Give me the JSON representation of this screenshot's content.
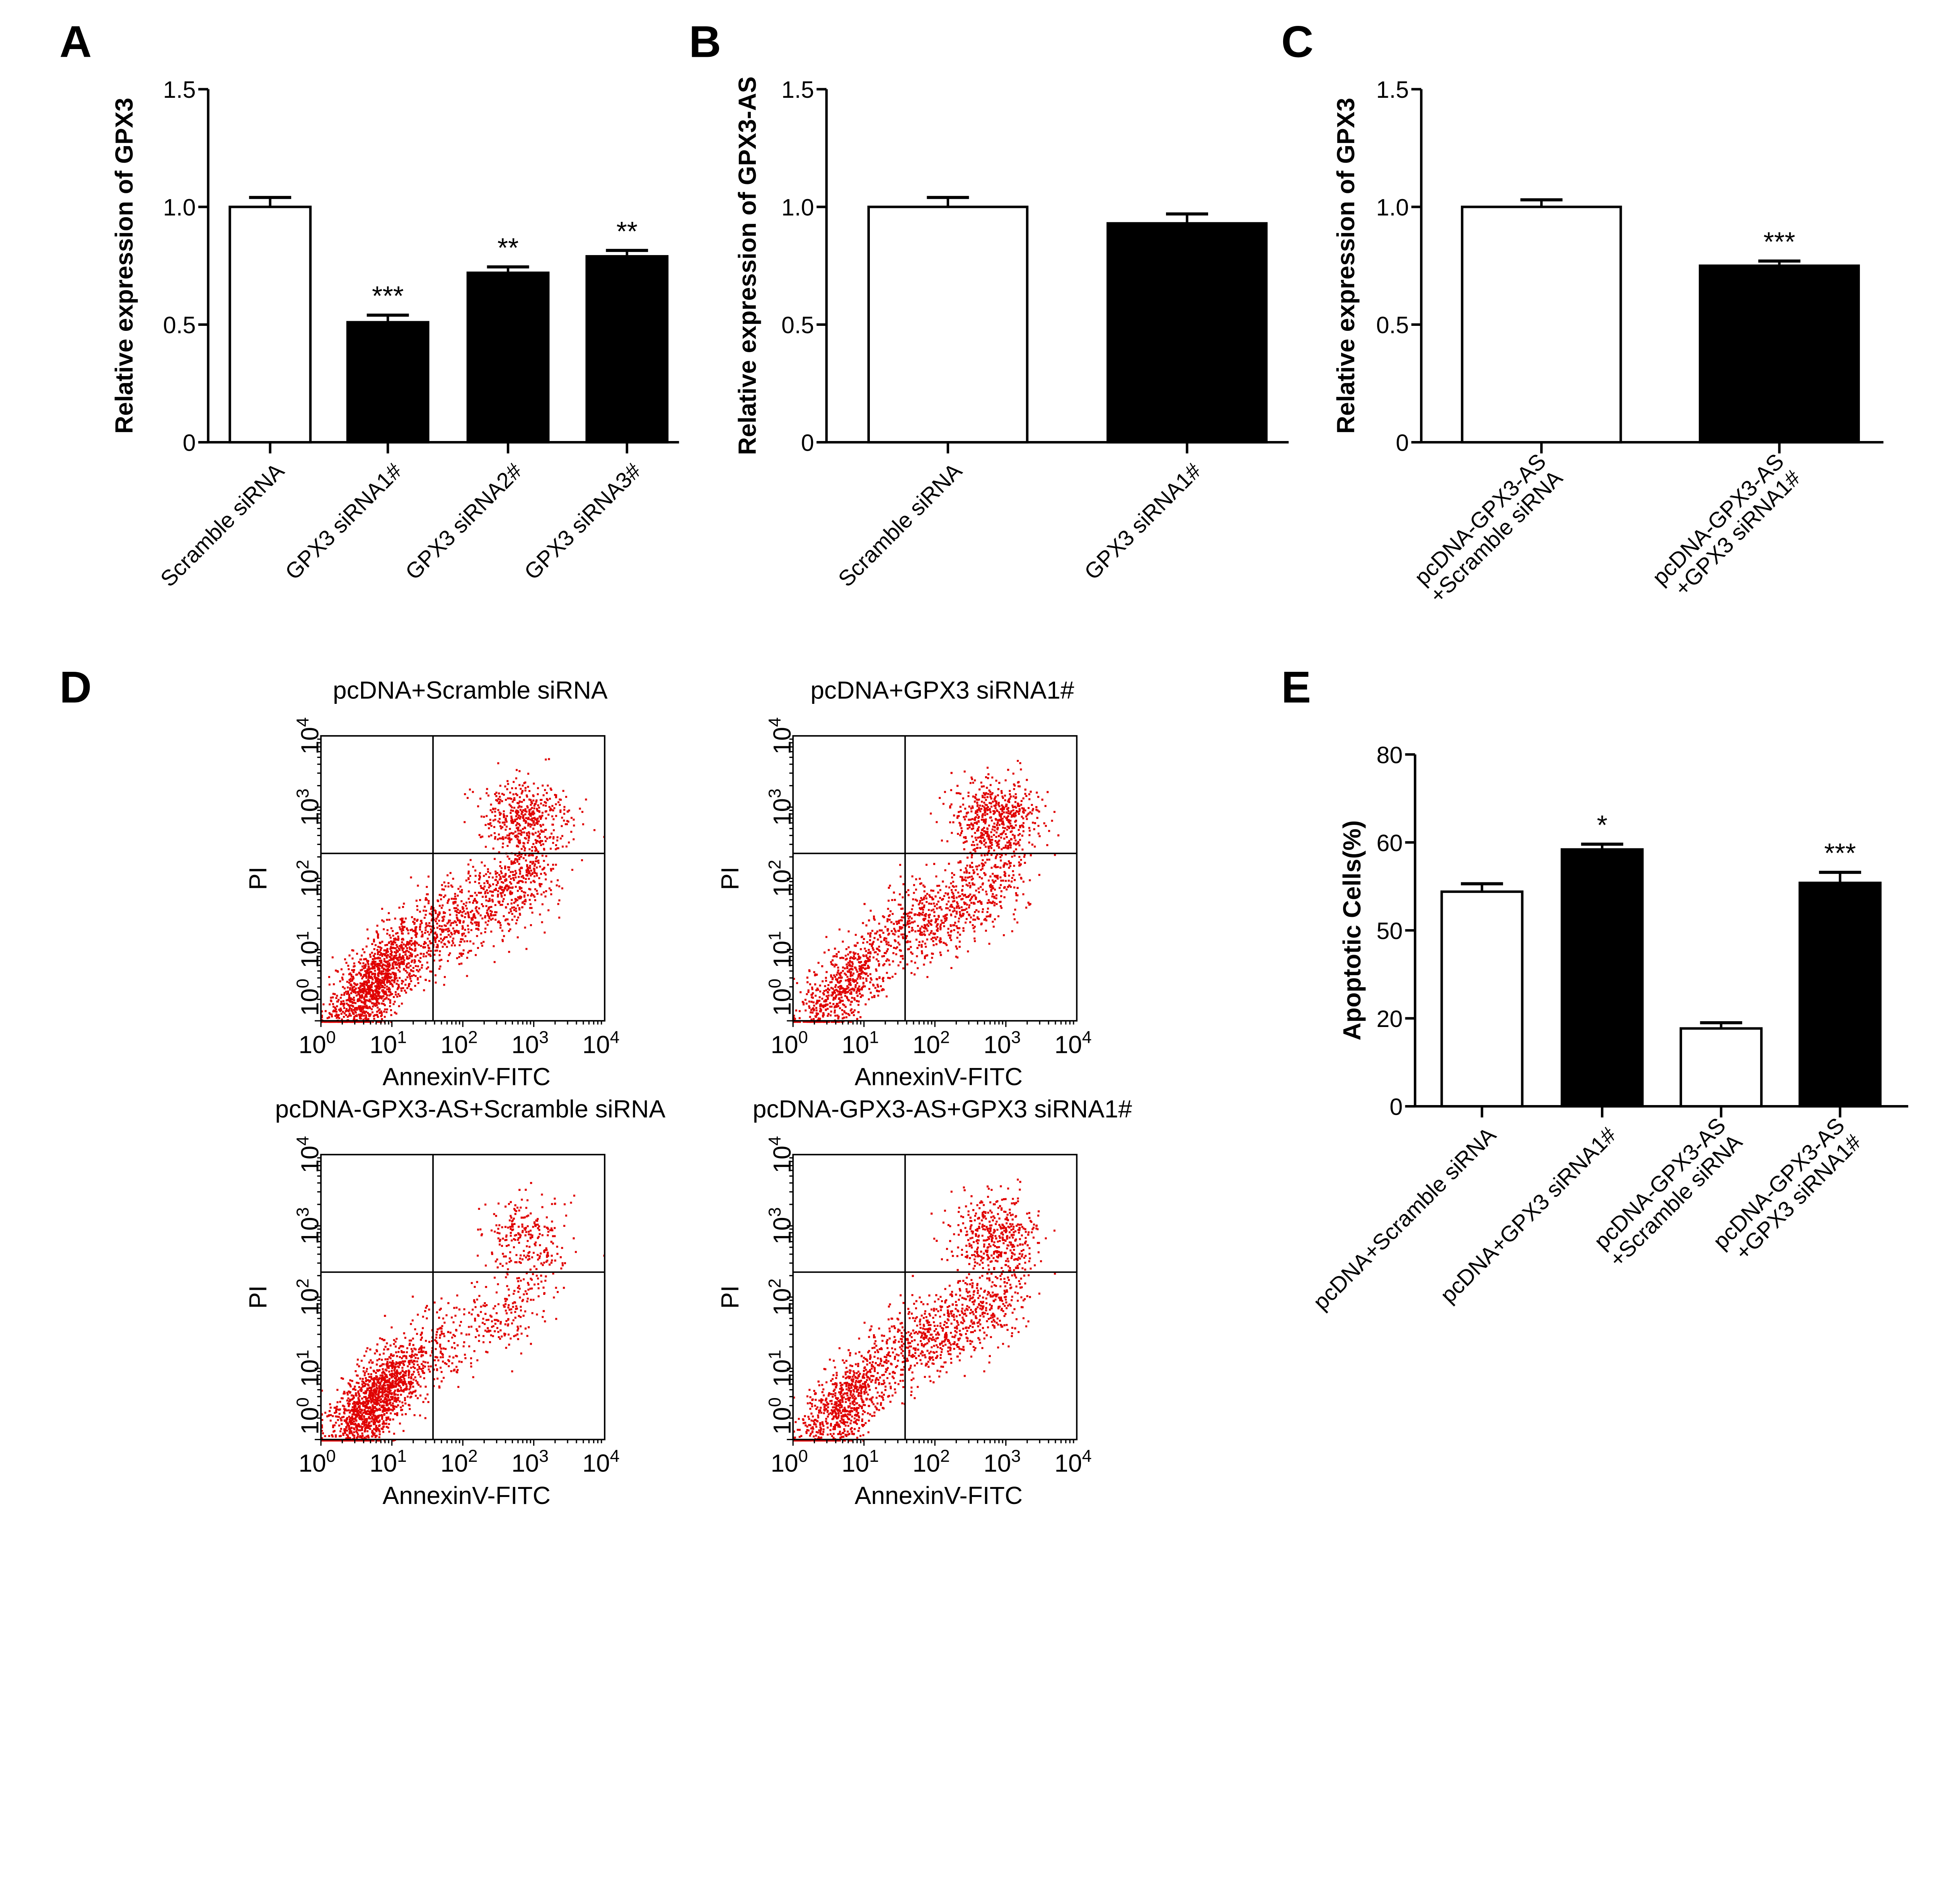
{
  "colors": {
    "filled_bar": "#000000",
    "open_bar": "#ffffff",
    "dots": "#e00000"
  },
  "chart_data": [
    {
      "panel": "A",
      "type": "bar",
      "ylabel": "Relative expression of GPX3",
      "yticks": [
        "0",
        "0.5",
        "1.0",
        "1.5"
      ],
      "ylim": [
        0,
        1.5
      ],
      "categories": [
        [
          "Scramble siRNA"
        ],
        [
          "GPX3 siRNA1#"
        ],
        [
          "GPX3 siRNA2#"
        ],
        [
          "GPX3 siRNA3#"
        ]
      ],
      "values": [
        1.0,
        0.51,
        0.72,
        0.79
      ],
      "error": [
        0.04,
        0.03,
        0.025,
        0.025
      ],
      "fill": [
        "open",
        "filled",
        "filled",
        "filled"
      ],
      "significance": [
        "",
        "***",
        "**",
        "**"
      ]
    },
    {
      "panel": "B",
      "type": "bar",
      "ylabel": "Relative expression of GPX3-AS",
      "yticks": [
        "0",
        "0.5",
        "1.0",
        "1.5"
      ],
      "ylim": [
        0,
        1.5
      ],
      "categories": [
        [
          "Scramble siRNA"
        ],
        [
          "GPX3 siRNA1#"
        ]
      ],
      "values": [
        1.0,
        0.93
      ],
      "error": [
        0.04,
        0.04
      ],
      "fill": [
        "open",
        "filled"
      ],
      "significance": [
        "",
        ""
      ]
    },
    {
      "panel": "C",
      "type": "bar",
      "ylabel": "Relative expression of GPX3",
      "yticks": [
        "0",
        "0.5",
        "1.0",
        "1.5"
      ],
      "ylim": [
        0,
        1.5
      ],
      "categories": [
        [
          "pcDNA-GPX3-AS",
          "+Scramble siRNA"
        ],
        [
          "pcDNA-GPX3-AS",
          "+GPX3 siRNA1#"
        ]
      ],
      "values": [
        1.0,
        0.75
      ],
      "error": [
        0.03,
        0.02
      ],
      "fill": [
        "open",
        "filled"
      ],
      "significance": [
        "",
        "***"
      ]
    },
    {
      "panel": "D",
      "type": "scatter",
      "xlabel": "AnnexinV-FITC",
      "ylabel": "PI",
      "scale": "log",
      "xlim": [
        1,
        10000
      ],
      "ylim": [
        1,
        10000
      ],
      "plots": [
        {
          "title": "pcDNA+Scramble siRNA"
        },
        {
          "title": "pcDNA+GPX3 siRNA1#"
        },
        {
          "title": "pcDNA-GPX3-AS+Scramble siRNA"
        },
        {
          "title": "pcDNA-GPX3-AS+GPX3 siRNA1#"
        }
      ]
    },
    {
      "panel": "E",
      "type": "bar",
      "ylabel": "Apoptotic Cells(%)",
      "yticks": [
        "0",
        "20",
        "50",
        "60",
        "80"
      ],
      "categories": [
        [
          "pcDNA+Scramble siRNA"
        ],
        [
          "pcDNA+GPX3 siRNA1#"
        ],
        [
          "pcDNA-GPX3-AS",
          "+Scramble siRNA"
        ],
        [
          "pcDNA-GPX3-AS",
          "+GPX3 siRNA1#"
        ]
      ],
      "values": [
        54.4,
        59.2,
        17.7,
        55.4
      ],
      "error": [
        0.9,
        0.6,
        1.3,
        1.2
      ],
      "fill": [
        "open",
        "filled",
        "open",
        "filled"
      ],
      "significance": [
        "",
        "*",
        "",
        "***"
      ]
    }
  ]
}
